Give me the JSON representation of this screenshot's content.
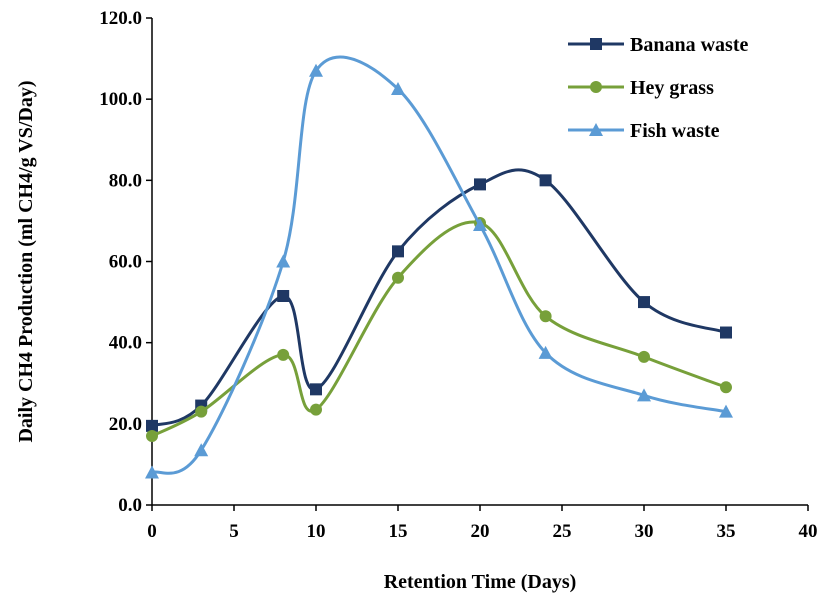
{
  "chart_data": {
    "type": "line",
    "xlabel": "Retention Time (Days)",
    "ylabel": "Daily CH4 Production (ml CH4/g VS/Day)",
    "xlim": [
      0,
      40
    ],
    "ylim": [
      0,
      120
    ],
    "xticks": [
      0,
      5,
      10,
      15,
      20,
      25,
      30,
      35,
      40
    ],
    "xtick_labels": [
      "0",
      "5",
      "10",
      "15",
      "20",
      "25",
      "30",
      "35",
      "40"
    ],
    "yticks": [
      0,
      20,
      40,
      60,
      80,
      100,
      120
    ],
    "ytick_labels": [
      "0.0",
      "20.0",
      "40.0",
      "60.0",
      "80.0",
      "100.0",
      "120.0"
    ],
    "grid": false,
    "smooth": true,
    "legend_position": "top-right",
    "series": [
      {
        "name": "Banana waste",
        "color": "#1f3864",
        "marker": "square",
        "x": [
          0,
          3,
          8,
          10,
          15,
          20,
          24,
          30,
          35
        ],
        "y": [
          19.5,
          24.5,
          51.5,
          28.5,
          62.5,
          79,
          80,
          50,
          42.5
        ]
      },
      {
        "name": "Hey grass",
        "color": "#77a03a",
        "marker": "circle",
        "x": [
          0,
          3,
          8,
          10,
          15,
          20,
          24,
          30,
          35
        ],
        "y": [
          17,
          23,
          37,
          23.5,
          56,
          69.5,
          46.5,
          36.5,
          29
        ]
      },
      {
        "name": "Fish waste",
        "color": "#5b9bd5",
        "marker": "triangle",
        "x": [
          0,
          3,
          8,
          10,
          15,
          20,
          24,
          30,
          35
        ],
        "y": [
          8,
          13.5,
          60,
          107,
          102.5,
          69,
          37.5,
          27,
          23
        ]
      }
    ]
  }
}
